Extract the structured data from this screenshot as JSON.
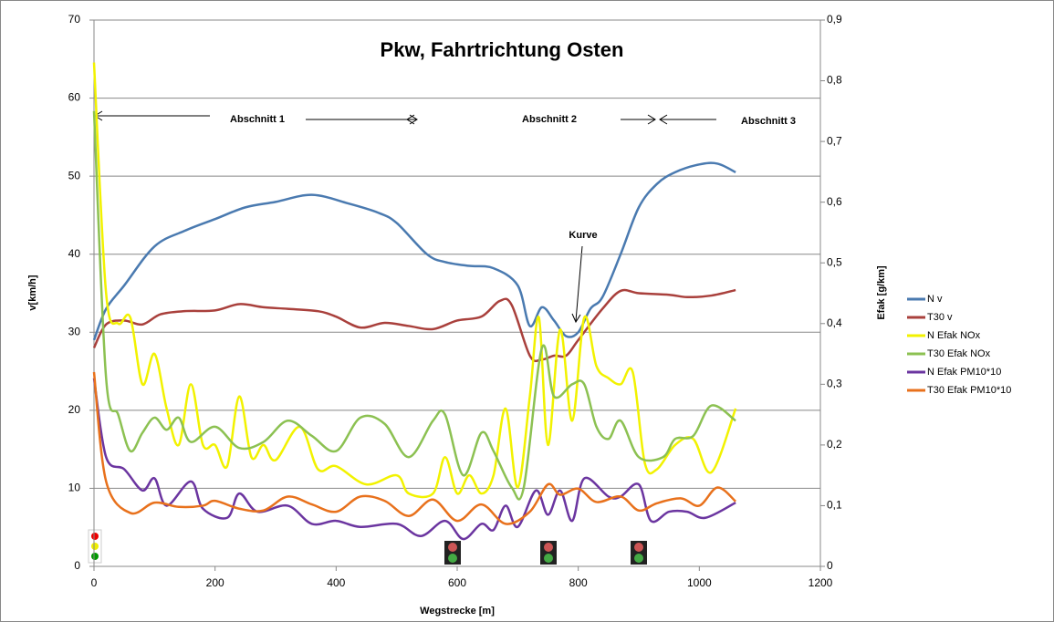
{
  "chart_data": {
    "type": "line",
    "title": "Pkw, Fahrtrichtung Osten",
    "x_label": "Wegstrecke  [m]",
    "y_label": "v[km/h]",
    "y2_label": "Efak [g/km]",
    "annotations": [
      "Abschnitt 1",
      "Abschnitt 2",
      "Abschnitt 3",
      "Kurve"
    ],
    "xlim": [
      0,
      1200
    ],
    "xticks": [
      0,
      200,
      400,
      600,
      800,
      1000,
      1200
    ],
    "ylim": [
      0,
      70
    ],
    "yticks": [
      0,
      10,
      20,
      30,
      40,
      50,
      60,
      70
    ],
    "y2lim": [
      0,
      0.9
    ],
    "y2ticks": [
      {
        "value": 0,
        "label": "0"
      },
      {
        "value": 0.1,
        "label": "0,1"
      },
      {
        "value": 0.2,
        "label": "0,2"
      },
      {
        "value": 0.3,
        "label": "0,3"
      },
      {
        "value": 0.4,
        "label": "0,4"
      },
      {
        "value": 0.5,
        "label": "0,5"
      },
      {
        "value": 0.6,
        "label": "0,6"
      },
      {
        "value": 0.7,
        "label": "0,7"
      },
      {
        "value": 0.8,
        "label": "0,8"
      },
      {
        "value": 0.9,
        "label": "0,9"
      }
    ],
    "grid": true,
    "legend": "right",
    "series": [
      {
        "name": "N v",
        "color": "#4a7ab0",
        "axis": "y",
        "x": [
          0,
          20,
          50,
          100,
          150,
          200,
          250,
          300,
          360,
          420,
          470,
          500,
          550,
          580,
          620,
          660,
          700,
          720,
          740,
          760,
          780,
          800,
          820,
          840,
          870,
          900,
          930,
          960,
          1000,
          1030,
          1060
        ],
        "values": [
          29,
          33,
          36,
          41,
          43,
          44.5,
          46,
          46.7,
          47.6,
          46.5,
          45.3,
          44,
          40,
          39,
          38.5,
          38.2,
          36,
          30.8,
          33.2,
          31.5,
          29.5,
          30,
          33,
          34.5,
          40,
          46,
          49,
          50.5,
          51.5,
          51.6,
          50.5
        ]
      },
      {
        "name": "T30 v",
        "color": "#a9403c",
        "axis": "y",
        "x": [
          0,
          20,
          50,
          80,
          110,
          150,
          200,
          240,
          280,
          320,
          370,
          400,
          440,
          480,
          520,
          560,
          600,
          640,
          670,
          690,
          720,
          740,
          760,
          780,
          800,
          840,
          870,
          900,
          950,
          980,
          1020,
          1060
        ],
        "values": [
          28,
          31,
          31.5,
          31,
          32.3,
          32.7,
          32.8,
          33.6,
          33.2,
          33,
          32.7,
          32,
          30.6,
          31.2,
          30.8,
          30.4,
          31.5,
          32,
          34,
          33.5,
          27,
          26.5,
          27,
          27,
          29,
          33,
          35.3,
          35,
          34.8,
          34.5,
          34.7,
          35.4
        ]
      },
      {
        "name": "N Efak NOx",
        "color": "#f2f200",
        "axis": "y2",
        "x": [
          0,
          20,
          40,
          60,
          80,
          100,
          120,
          140,
          160,
          180,
          200,
          220,
          240,
          260,
          280,
          300,
          340,
          370,
          400,
          450,
          500,
          520,
          560,
          580,
          600,
          620,
          640,
          660,
          680,
          700,
          720,
          735,
          750,
          770,
          790,
          810,
          830,
          850,
          870,
          890,
          910,
          930,
          960,
          990,
          1020,
          1060
        ],
        "values": [
          0.83,
          0.45,
          0.4,
          0.41,
          0.3,
          0.35,
          0.26,
          0.2,
          0.3,
          0.2,
          0.2,
          0.165,
          0.28,
          0.18,
          0.2,
          0.175,
          0.23,
          0.16,
          0.165,
          0.135,
          0.15,
          0.12,
          0.12,
          0.18,
          0.12,
          0.15,
          0.12,
          0.15,
          0.26,
          0.13,
          0.28,
          0.41,
          0.2,
          0.39,
          0.24,
          0.41,
          0.33,
          0.31,
          0.3,
          0.32,
          0.17,
          0.16,
          0.2,
          0.21,
          0.155,
          0.26
        ]
      },
      {
        "name": "T30  Efak NOx",
        "color": "#8cc152",
        "axis": "y2",
        "x": [
          0,
          20,
          40,
          60,
          80,
          100,
          120,
          140,
          160,
          200,
          240,
          280,
          320,
          360,
          400,
          440,
          480,
          520,
          560,
          580,
          610,
          640,
          660,
          690,
          710,
          740,
          760,
          790,
          810,
          830,
          850,
          870,
          900,
          940,
          960,
          990,
          1020,
          1060
        ],
        "values": [
          0.75,
          0.31,
          0.25,
          0.19,
          0.22,
          0.245,
          0.225,
          0.245,
          0.205,
          0.23,
          0.195,
          0.205,
          0.24,
          0.215,
          0.19,
          0.245,
          0.235,
          0.18,
          0.24,
          0.25,
          0.15,
          0.22,
          0.19,
          0.13,
          0.13,
          0.36,
          0.28,
          0.3,
          0.3,
          0.23,
          0.21,
          0.24,
          0.18,
          0.18,
          0.21,
          0.215,
          0.265,
          0.24
        ]
      },
      {
        "name": "N Efak PM10*10",
        "color": "#6b35a0",
        "axis": "y2",
        "x": [
          0,
          20,
          50,
          80,
          100,
          120,
          160,
          180,
          220,
          240,
          270,
          320,
          360,
          400,
          440,
          500,
          540,
          580,
          610,
          640,
          660,
          680,
          700,
          730,
          750,
          770,
          790,
          810,
          850,
          870,
          900,
          920,
          950,
          980,
          1010,
          1060
        ],
        "values": [
          0.31,
          0.18,
          0.16,
          0.125,
          0.145,
          0.1,
          0.14,
          0.095,
          0.08,
          0.12,
          0.09,
          0.1,
          0.07,
          0.075,
          0.065,
          0.07,
          0.05,
          0.075,
          0.045,
          0.07,
          0.06,
          0.1,
          0.065,
          0.125,
          0.085,
          0.125,
          0.075,
          0.145,
          0.115,
          0.115,
          0.135,
          0.075,
          0.09,
          0.09,
          0.08,
          0.105
        ]
      },
      {
        "name": "T30  Efak PM10*10",
        "color": "#e8711c",
        "axis": "y2",
        "x": [
          0,
          20,
          60,
          100,
          140,
          180,
          200,
          240,
          280,
          320,
          360,
          400,
          440,
          480,
          520,
          560,
          600,
          640,
          680,
          720,
          750,
          770,
          800,
          830,
          870,
          900,
          930,
          970,
          1000,
          1030,
          1060
        ],
        "values": [
          0.32,
          0.14,
          0.088,
          0.105,
          0.098,
          0.1,
          0.108,
          0.095,
          0.092,
          0.115,
          0.102,
          0.09,
          0.115,
          0.108,
          0.083,
          0.11,
          0.075,
          0.102,
          0.07,
          0.09,
          0.135,
          0.118,
          0.128,
          0.106,
          0.115,
          0.092,
          0.104,
          0.112,
          0.1,
          0.13,
          0.107
        ]
      }
    ]
  }
}
